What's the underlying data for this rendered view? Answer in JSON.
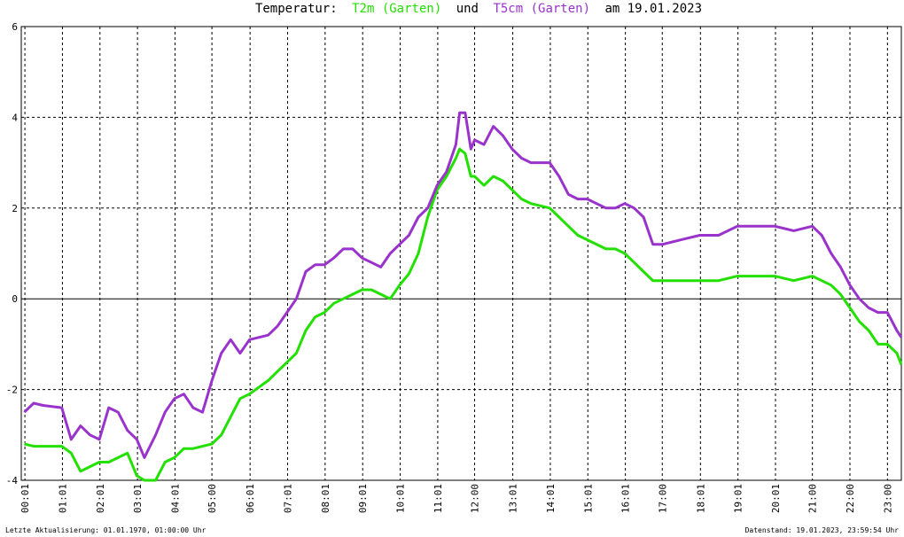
{
  "chart_data": {
    "type": "line",
    "title_prefix": "Temperatur:",
    "title_joiner": "und",
    "title_suffix": "am 19.01.2023",
    "footer_left": "Letzte Aktualisierung: 01.01.1970, 01:00:00 Uhr",
    "footer_right": "Datenstand: 19.01.2023, 23:59:54 Uhr",
    "grid": true,
    "xlim": [
      -0.08,
      23.37
    ],
    "ylim": [
      -4,
      6
    ],
    "yticks": [
      6,
      4,
      2,
      0,
      -2,
      -4
    ],
    "xticks": [
      {
        "value": 0.0167,
        "label": "00:01"
      },
      {
        "value": 1.0167,
        "label": "01:01"
      },
      {
        "value": 2.0167,
        "label": "02:01"
      },
      {
        "value": 3.0167,
        "label": "03:01"
      },
      {
        "value": 4.0167,
        "label": "04:01"
      },
      {
        "value": 5,
        "label": "05:00"
      },
      {
        "value": 6.0167,
        "label": "06:01"
      },
      {
        "value": 7.0167,
        "label": "07:01"
      },
      {
        "value": 8.0167,
        "label": "08:01"
      },
      {
        "value": 9.0167,
        "label": "09:01"
      },
      {
        "value": 10.0167,
        "label": "10:01"
      },
      {
        "value": 11.0167,
        "label": "11:01"
      },
      {
        "value": 12,
        "label": "12:00"
      },
      {
        "value": 13.0167,
        "label": "13:01"
      },
      {
        "value": 14.0167,
        "label": "14:01"
      },
      {
        "value": 15.0167,
        "label": "15:01"
      },
      {
        "value": 16.0167,
        "label": "16:01"
      },
      {
        "value": 17,
        "label": "17:00"
      },
      {
        "value": 18.0167,
        "label": "18:01"
      },
      {
        "value": 19.0167,
        "label": "19:01"
      },
      {
        "value": 20.0167,
        "label": "20:01"
      },
      {
        "value": 21,
        "label": "21:00"
      },
      {
        "value": 22,
        "label": "22:00"
      },
      {
        "value": 23,
        "label": "23:00"
      }
    ],
    "x": [
      0,
      0.25,
      0.5,
      1,
      1.25,
      1.5,
      1.75,
      2,
      2.25,
      2.5,
      2.75,
      3,
      3.2,
      3.5,
      3.75,
      4,
      4.25,
      4.5,
      4.75,
      5,
      5.25,
      5.5,
      5.75,
      6,
      6.5,
      6.75,
      7,
      7.25,
      7.5,
      7.75,
      8,
      8.25,
      8.5,
      8.75,
      9,
      9.25,
      9.5,
      9.75,
      10,
      10.25,
      10.5,
      10.75,
      11,
      11.25,
      11.5,
      11.6,
      11.75,
      11.9,
      12,
      12.25,
      12.5,
      12.75,
      13,
      13.25,
      13.5,
      14,
      14.25,
      14.5,
      14.75,
      15,
      15.5,
      15.75,
      16,
      16.25,
      16.5,
      16.75,
      17,
      17.5,
      18,
      18.5,
      19,
      20,
      20.5,
      21,
      21.25,
      21.5,
      21.75,
      22,
      22.25,
      22.5,
      22.75,
      23,
      23.25,
      23.37
    ],
    "series": [
      {
        "name": "T2m (Garten)",
        "color": "#22e000",
        "values": [
          -3.2,
          -3.25,
          -3.25,
          -3.25,
          -3.4,
          -3.8,
          -3.7,
          -3.6,
          -3.6,
          -3.5,
          -3.4,
          -3.9,
          -4.0,
          -4.0,
          -3.6,
          -3.5,
          -3.3,
          -3.3,
          -3.25,
          -3.2,
          -3.0,
          -2.6,
          -2.2,
          -2.1,
          -1.8,
          -1.6,
          -1.4,
          -1.2,
          -0.7,
          -0.4,
          -0.3,
          -0.1,
          0,
          0.1,
          0.2,
          0.2,
          0.1,
          0,
          0.3,
          0.55,
          1.0,
          1.8,
          2.4,
          2.7,
          3.1,
          3.3,
          3.2,
          2.7,
          2.7,
          2.5,
          2.7,
          2.6,
          2.4,
          2.2,
          2.1,
          2.0,
          1.8,
          1.6,
          1.4,
          1.3,
          1.1,
          1.1,
          1.0,
          0.8,
          0.6,
          0.4,
          0.4,
          0.4,
          0.4,
          0.4,
          0.5,
          0.5,
          0.4,
          0.5,
          0.4,
          0.3,
          0.1,
          -0.2,
          -0.5,
          -0.7,
          -1.0,
          -1.0,
          -1.2,
          -1.45
        ]
      },
      {
        "name": "T5cm (Garten)",
        "color": "#9933cc",
        "values": [
          -2.5,
          -2.3,
          -2.35,
          -2.4,
          -3.1,
          -2.8,
          -3.0,
          -3.1,
          -2.4,
          -2.5,
          -2.9,
          -3.1,
          -3.5,
          -3.0,
          -2.5,
          -2.2,
          -2.1,
          -2.4,
          -2.5,
          -1.8,
          -1.2,
          -0.9,
          -1.2,
          -0.9,
          -0.8,
          -0.6,
          -0.3,
          0,
          0.6,
          0.75,
          0.75,
          0.9,
          1.1,
          1.1,
          0.9,
          0.8,
          0.7,
          1.0,
          1.2,
          1.4,
          1.8,
          2.0,
          2.5,
          2.8,
          3.4,
          4.1,
          4.1,
          3.3,
          3.5,
          3.4,
          3.8,
          3.6,
          3.3,
          3.1,
          3.0,
          3.0,
          2.7,
          2.3,
          2.2,
          2.2,
          2.0,
          2.0,
          2.1,
          2.0,
          1.8,
          1.2,
          1.2,
          1.3,
          1.4,
          1.4,
          1.6,
          1.6,
          1.5,
          1.6,
          1.4,
          1.0,
          0.7,
          0.3,
          0,
          -0.2,
          -0.3,
          -0.3,
          -0.7,
          -0.85
        ]
      }
    ]
  }
}
